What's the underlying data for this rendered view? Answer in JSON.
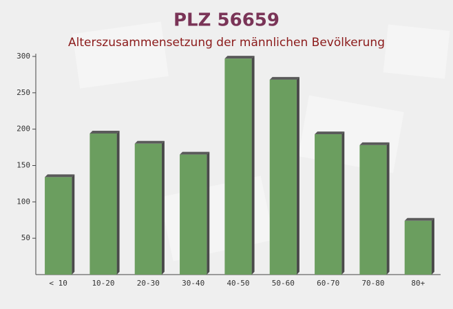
{
  "chart_data": {
    "type": "bar",
    "title": "PLZ 56659",
    "subtitle": "Alterszusammensetzung der männlichen Bevölkerung",
    "categories": [
      "< 10",
      "10-20",
      "20-30",
      "30-40",
      "40-50",
      "50-60",
      "60-70",
      "70-80",
      "80+"
    ],
    "values": [
      134,
      194,
      180,
      165,
      297,
      268,
      193,
      178,
      74
    ],
    "color": "#6b9e5f",
    "ylim": [
      0,
      300
    ],
    "yticks": [
      50,
      100,
      150,
      200,
      250,
      300
    ]
  }
}
